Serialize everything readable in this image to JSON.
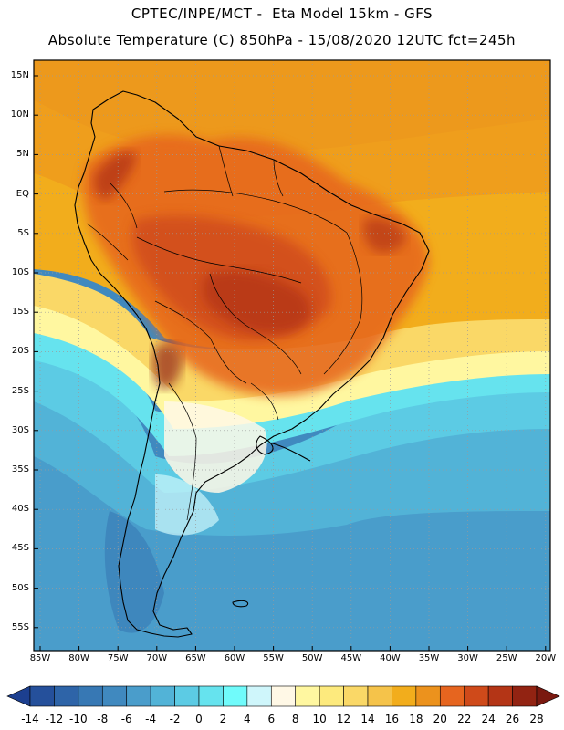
{
  "header": {
    "line1": "CPTEC/INPE/MCT -  Eta Model 15km - GFS",
    "line2": "Absolute Temperature (C) 850hPa - 15/08/2020 12UTC fct=245h"
  },
  "map": {
    "variable": "Absolute Temperature",
    "units": "C",
    "level": "850hPa",
    "lat_labels": [
      "15N",
      "10N",
      "5N",
      "EQ",
      "5S",
      "10S",
      "15S",
      "20S",
      "25S",
      "30S",
      "35S",
      "40S",
      "45S",
      "50S",
      "55S"
    ],
    "lon_labels": [
      "85W",
      "80W",
      "75W",
      "70W",
      "65W",
      "60W",
      "55W",
      "50W",
      "45W",
      "40W",
      "35W",
      "30W",
      "25W",
      "20W"
    ],
    "grid_style": "dotted"
  },
  "colorbar": {
    "labels": [
      "-14",
      "-12",
      "-10",
      "-8",
      "-6",
      "-4",
      "-2",
      "0",
      "2",
      "4",
      "6",
      "8",
      "10",
      "12",
      "14",
      "16",
      "18",
      "20",
      "22",
      "24",
      "26",
      "28"
    ],
    "colors": [
      "#1c3f8f",
      "#25509b",
      "#2e64a8",
      "#3778b4",
      "#4089bf",
      "#4a9dcb",
      "#52b3d7",
      "#5ccbe4",
      "#66e3ee",
      "#70fbfb",
      "#cff6fb",
      "#fff8e6",
      "#fff7a0",
      "#fdea7d",
      "#fad867",
      "#f5c34a",
      "#f2ad1c",
      "#ec921d",
      "#e6651f",
      "#cf4a1a",
      "#b43516",
      "#922312",
      "#7a1910"
    ]
  }
}
